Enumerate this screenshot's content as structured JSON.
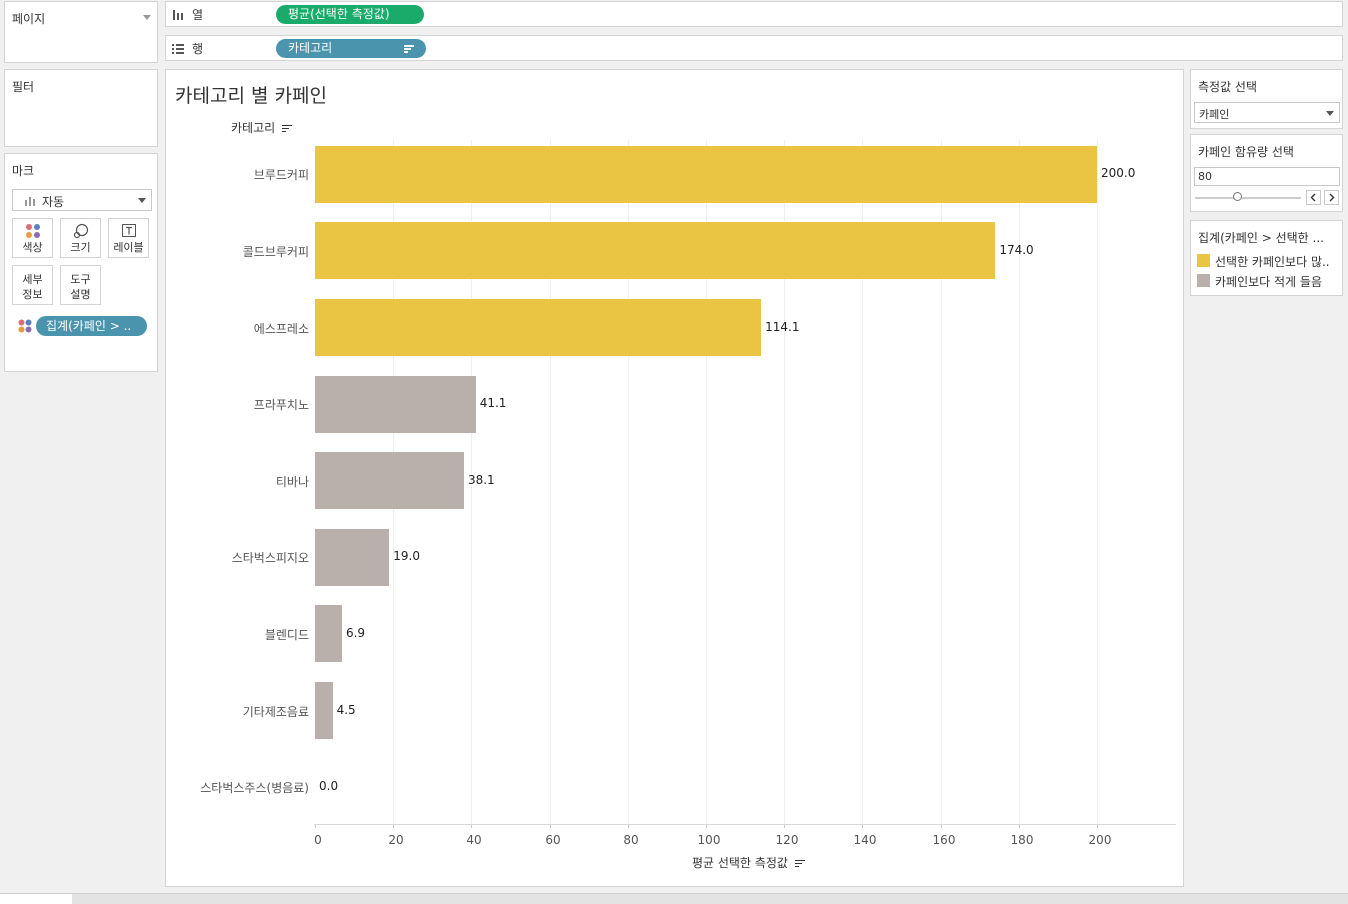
{
  "pages": {
    "title": "페이지"
  },
  "filters": {
    "title": "필터"
  },
  "marks": {
    "title": "마크",
    "type_value": "자동",
    "buttons": {
      "color": "색상",
      "size": "크기",
      "label": "레이블",
      "detail_1": "세부",
      "detail_2": "정보",
      "tooltip_1": "도구",
      "tooltip_2": "설명"
    },
    "pill": "집계(카페인 > .."
  },
  "shelves": {
    "columns": {
      "label": "열",
      "pill": "평균(선택한 측정값)"
    },
    "rows": {
      "label": "행",
      "pill": "카테고리"
    }
  },
  "chart_data": {
    "type": "bar",
    "orientation": "horizontal",
    "title": "카테고리 별 카페인",
    "category_header": "카테고리",
    "xlabel": "평균 선택한 측정값",
    "xlim": [
      0,
      220
    ],
    "ticks": [
      0,
      20,
      40,
      60,
      80,
      100,
      120,
      140,
      160,
      180,
      200
    ],
    "categories": [
      "브루드커피",
      "콜드브루커피",
      "에스프레소",
      "프라푸치노",
      "티바나",
      "스타벅스피지오",
      "블렌디드",
      "기타제조음료",
      "스타벅스주스(병음료)"
    ],
    "values": [
      200.0,
      174.0,
      114.1,
      41.1,
      38.1,
      19.0,
      6.9,
      4.5,
      0.0
    ],
    "value_labels": [
      "200.0",
      "174.0",
      "114.1",
      "41.1",
      "38.1",
      "19.0",
      "6.9",
      "4.5",
      "0.0"
    ],
    "groups": [
      "above",
      "above",
      "above",
      "below",
      "below",
      "below",
      "below",
      "below",
      "below"
    ],
    "colors": {
      "above": "#e9c543",
      "below": "#bab0ab"
    }
  },
  "parameters": {
    "measure": {
      "title": "측정값 선택",
      "value": "카페인"
    },
    "caffeine": {
      "title": "카페인 함유량 선택",
      "value": "80"
    }
  },
  "legend": {
    "title": "집계(카페인 > 선택한 ...",
    "items": [
      {
        "label": "선택한 카페인보다 많..",
        "color": "#e9c543"
      },
      {
        "label": "카페인보다 적게 들음",
        "color": "#bab0ab"
      }
    ]
  }
}
